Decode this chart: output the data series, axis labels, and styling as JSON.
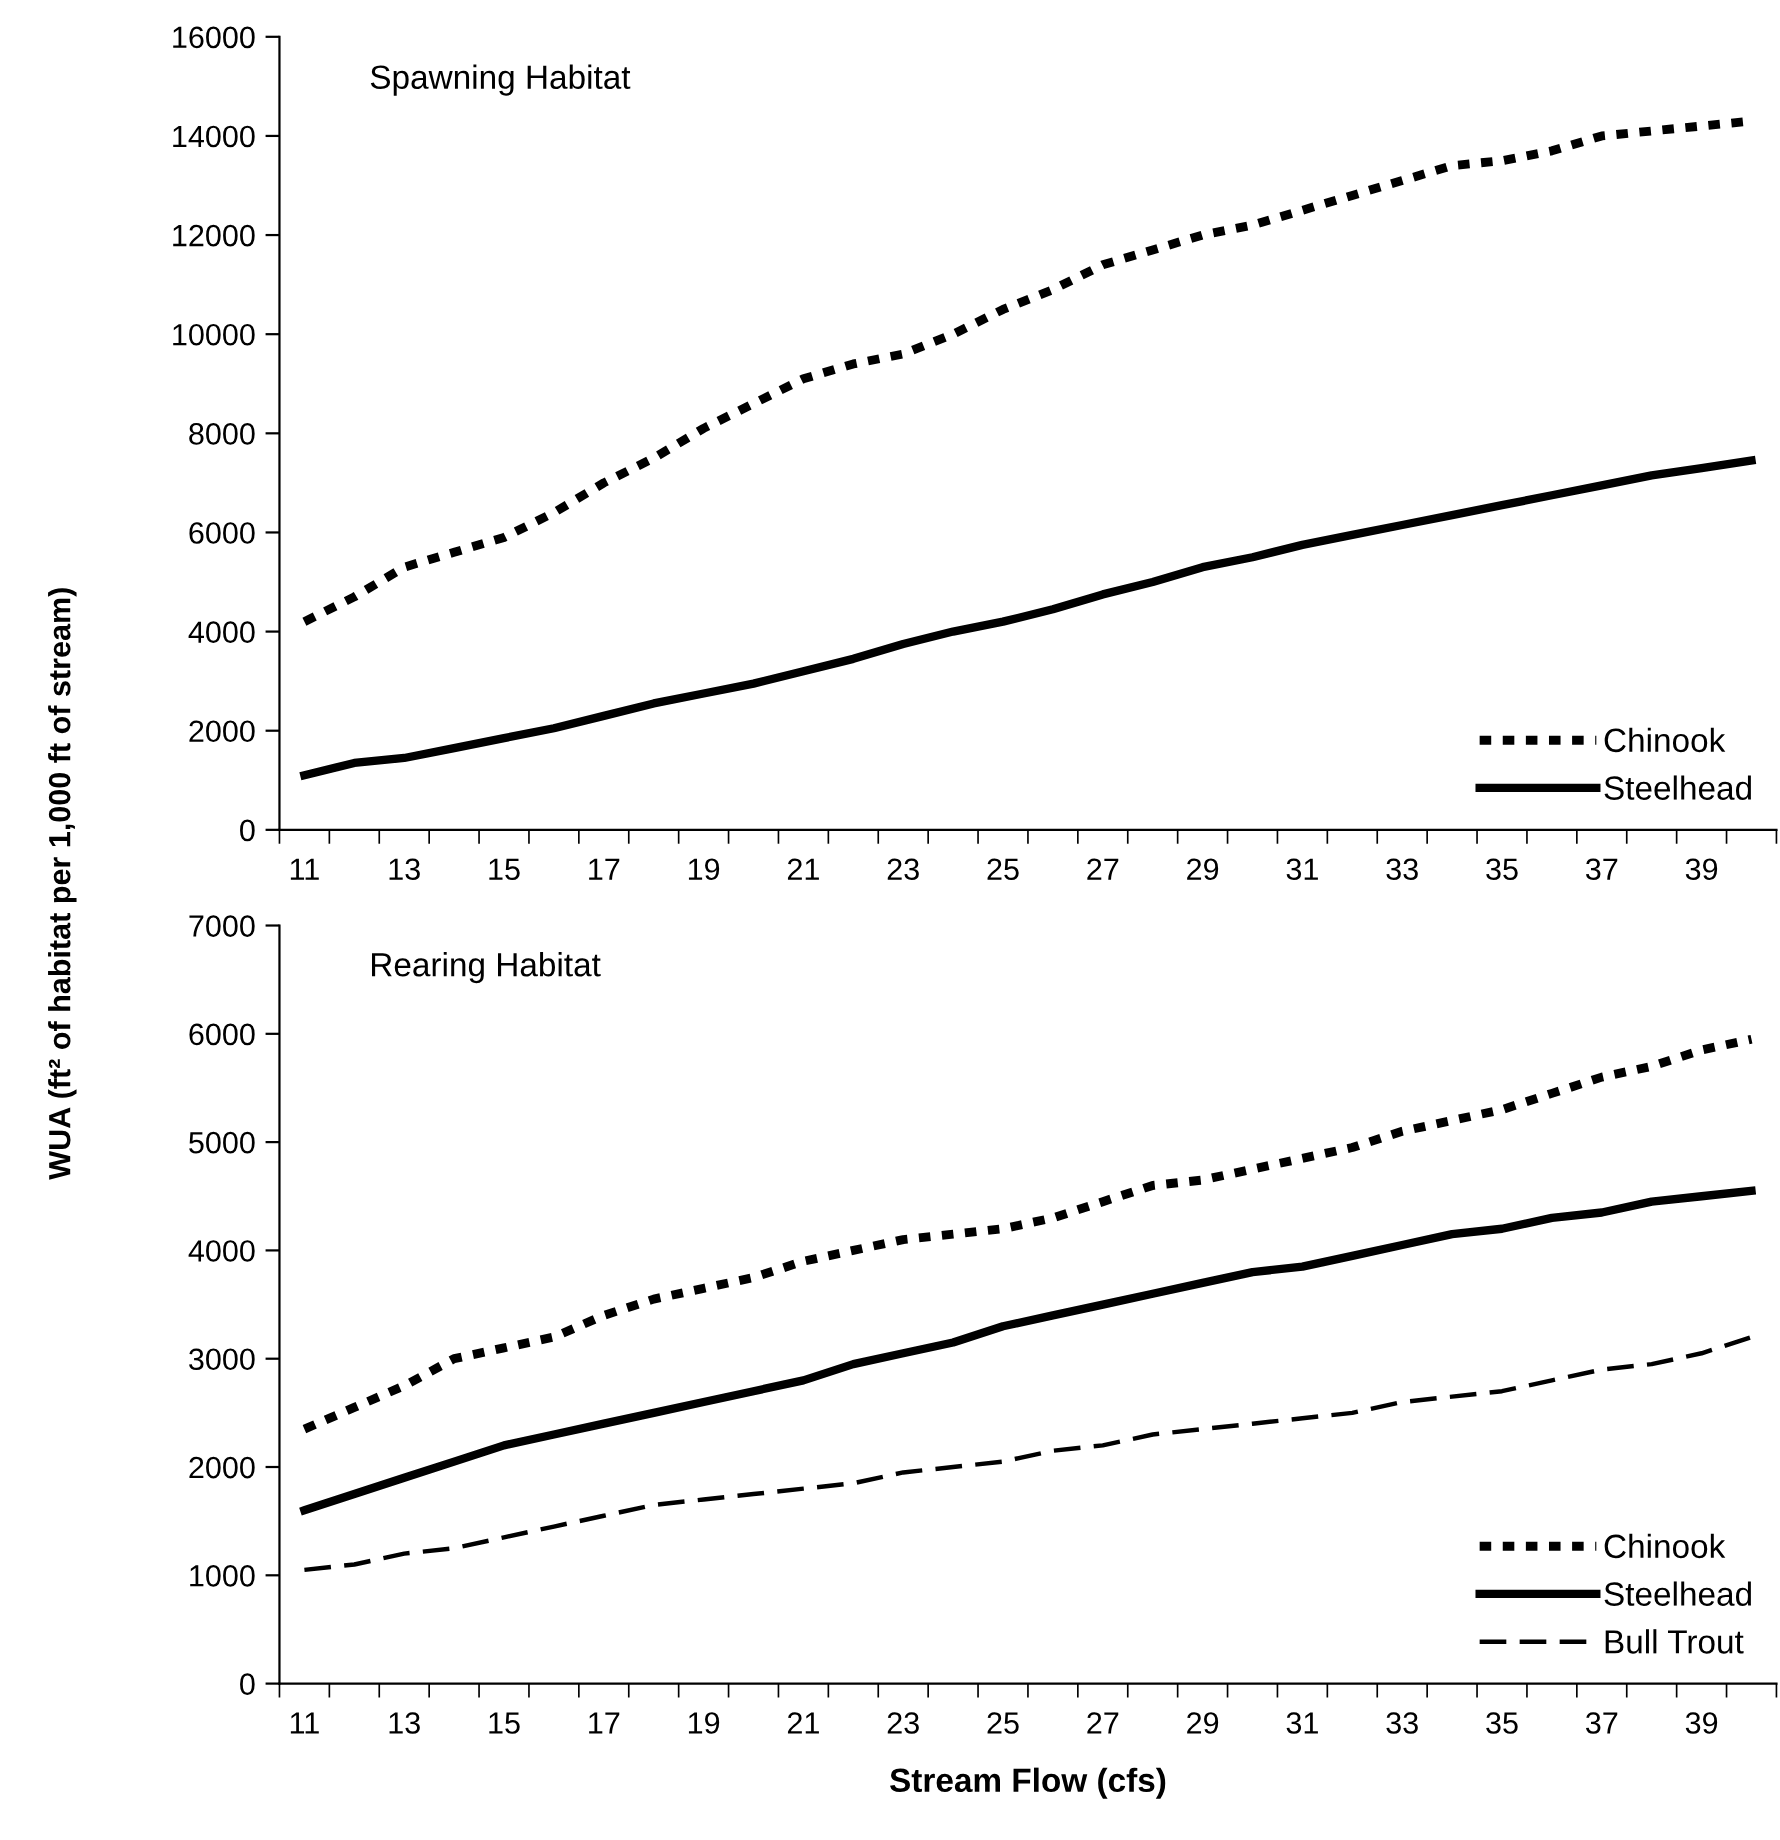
{
  "chart_data": [
    {
      "type": "line",
      "title": "Spawning Habitat",
      "ylabel": "WUA (ft² of habitat per 1,000 ft of stream)",
      "categories": [
        "11",
        null,
        "13",
        null,
        "15",
        null,
        "17",
        null,
        "19",
        null,
        "21",
        null,
        "23",
        null,
        "25",
        null,
        "27",
        null,
        "29",
        null,
        "31",
        null,
        "33",
        null,
        "35",
        null,
        "37",
        null,
        "39",
        null
      ],
      "series": [
        {
          "name": "Chinook",
          "color": "#000000",
          "line_style": "dotted",
          "values": [
            4200,
            4700,
            5300,
            5600,
            5900,
            6400,
            7000,
            7500,
            8100,
            8600,
            9100,
            9400,
            9600,
            10000,
            10500,
            10900,
            11400,
            11700,
            12000,
            12200,
            12500,
            12800,
            13100,
            13400,
            13500,
            13700,
            14000,
            14100,
            14200,
            14300
          ]
        },
        {
          "name": "Steelhead",
          "color": "#000000",
          "line_style": "solid",
          "values": [
            1100,
            1350,
            1450,
            1650,
            1850,
            2050,
            2300,
            2550,
            2750,
            2950,
            3200,
            3450,
            3750,
            4000,
            4200,
            4450,
            4750,
            5000,
            5300,
            5500,
            5750,
            5950,
            6150,
            6350,
            6550,
            6750,
            6950,
            7150,
            7300,
            7450
          ]
        }
      ],
      "ylim": [
        0,
        16000
      ],
      "yticks": [
        0,
        2000,
        4000,
        6000,
        8000,
        10000,
        12000,
        14000,
        16000
      ],
      "grid": false,
      "legend": "bottom right",
      "marker": "none"
    },
    {
      "type": "line",
      "title": "Rearing Habitat",
      "xlabel": "Stream Flow (cfs)",
      "categories": [
        "11",
        null,
        "13",
        null,
        "15",
        null,
        "17",
        null,
        "19",
        null,
        "21",
        null,
        "23",
        null,
        "25",
        null,
        "27",
        null,
        "29",
        null,
        "31",
        null,
        "33",
        null,
        "35",
        null,
        "37",
        null,
        "39",
        null
      ],
      "series": [
        {
          "name": "Chinook",
          "color": "#000000",
          "line_style": "dotted",
          "values": [
            2350,
            2550,
            2750,
            3000,
            3100,
            3200,
            3400,
            3550,
            3650,
            3750,
            3900,
            4000,
            4100,
            4150,
            4200,
            4300,
            4450,
            4600,
            4650,
            4750,
            4850,
            4950,
            5100,
            5200,
            5300,
            5450,
            5600,
            5700,
            5850,
            5950
          ]
        },
        {
          "name": "Steelhead",
          "color": "#000000",
          "line_style": "solid",
          "values": [
            1600,
            1750,
            1900,
            2050,
            2200,
            2300,
            2400,
            2500,
            2600,
            2700,
            2800,
            2950,
            3050,
            3150,
            3300,
            3400,
            3500,
            3600,
            3700,
            3800,
            3850,
            3950,
            4050,
            4150,
            4200,
            4300,
            4350,
            4450,
            4500,
            4550
          ]
        },
        {
          "name": "Bull Trout",
          "color": "#000000",
          "line_style": "dashed",
          "values": [
            1050,
            1100,
            1200,
            1250,
            1350,
            1450,
            1550,
            1650,
            1700,
            1750,
            1800,
            1850,
            1950,
            2000,
            2050,
            2150,
            2200,
            2300,
            2350,
            2400,
            2450,
            2500,
            2600,
            2650,
            2700,
            2800,
            2900,
            2950,
            3050,
            3200
          ]
        }
      ],
      "ylim": [
        0,
        7000
      ],
      "yticks": [
        0,
        1000,
        2000,
        3000,
        4000,
        5000,
        6000,
        7000
      ],
      "grid": false,
      "legend": "bottom right",
      "marker": "none"
    }
  ]
}
